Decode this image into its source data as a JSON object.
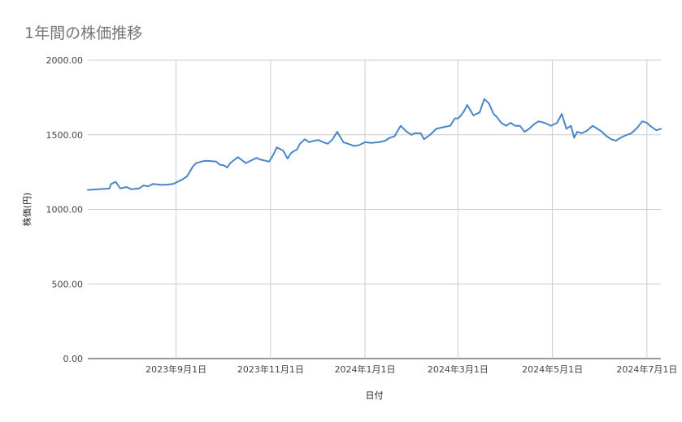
{
  "chart_data": {
    "type": "line",
    "title": "1年間の株価推移",
    "xlabel": "日付",
    "ylabel": "株価(円)",
    "ylim": [
      0,
      2000
    ],
    "yticks": [
      0,
      500,
      1000,
      1500,
      2000
    ],
    "ytick_labels": [
      "0.00",
      "500.00",
      "1000.00",
      "1500.00",
      "2000.00"
    ],
    "xlim": [
      "2023-07-06",
      "2024-07-10"
    ],
    "xticks": [
      "2023-09-01",
      "2023-11-01",
      "2024-01-01",
      "2024-03-01",
      "2024-05-01",
      "2024-07-01"
    ],
    "xtick_labels": [
      "2023年9月1日",
      "2023年11月1日",
      "2024年1月1日",
      "2024年3月1日",
      "2024年5月1日",
      "2024年7月1日"
    ],
    "grid": true,
    "line_color": "#4a86c8",
    "series": [
      {
        "x": [
          "2023-07-06",
          "2023-07-20",
          "2023-07-21",
          "2023-07-24",
          "2023-07-27",
          "2023-07-31",
          "2023-08-03",
          "2023-08-08",
          "2023-08-11",
          "2023-08-14",
          "2023-08-17",
          "2023-08-22",
          "2023-08-25",
          "2023-08-30",
          "2023-09-01",
          "2023-09-05",
          "2023-09-08",
          "2023-09-12",
          "2023-09-14",
          "2023-09-19",
          "2023-09-22",
          "2023-09-27",
          "2023-09-29",
          "2023-10-02",
          "2023-10-04",
          "2023-10-06",
          "2023-10-09",
          "2023-10-11",
          "2023-10-16",
          "2023-10-20",
          "2023-10-23",
          "2023-10-25",
          "2023-10-27",
          "2023-10-31",
          "2023-11-03",
          "2023-11-05",
          "2023-11-07",
          "2023-11-09",
          "2023-11-12",
          "2023-11-14",
          "2023-11-16",
          "2023-11-18",
          "2023-11-20",
          "2023-11-23",
          "2023-11-26",
          "2023-11-29",
          "2023-12-02",
          "2023-12-05",
          "2023-12-08",
          "2023-12-11",
          "2023-12-14",
          "2023-12-18",
          "2023-12-21",
          "2023-12-25",
          "2023-12-28",
          "2024-01-01",
          "2024-01-05",
          "2024-01-10",
          "2024-01-14",
          "2024-01-17",
          "2024-01-20",
          "2024-01-24",
          "2024-01-28",
          "2024-01-31",
          "2024-02-02",
          "2024-02-06",
          "2024-02-08",
          "2024-02-12",
          "2024-02-16",
          "2024-02-20",
          "2024-02-25",
          "2024-02-28",
          "2024-03-01",
          "2024-03-03",
          "2024-03-05",
          "2024-03-07",
          "2024-03-11",
          "2024-03-15",
          "2024-03-18",
          "2024-03-21",
          "2024-03-24",
          "2024-03-26",
          "2024-03-29",
          "2024-04-01",
          "2024-04-04",
          "2024-04-07",
          "2024-04-10",
          "2024-04-13",
          "2024-04-16",
          "2024-04-19",
          "2024-04-22",
          "2024-04-26",
          "2024-04-30",
          "2024-05-04",
          "2024-05-07",
          "2024-05-10",
          "2024-05-13",
          "2024-05-15",
          "2024-05-17",
          "2024-05-20",
          "2024-05-23",
          "2024-05-27",
          "2024-05-30",
          "2024-06-02",
          "2024-06-05",
          "2024-06-08",
          "2024-06-11",
          "2024-06-14",
          "2024-06-18",
          "2024-06-21",
          "2024-06-25",
          "2024-06-28",
          "2024-07-01",
          "2024-07-02",
          "2024-07-03",
          "2024-07-05",
          "2024-07-07",
          "2024-07-10"
        ],
        "y": [
          1130,
          1140,
          1170,
          1185,
          1140,
          1150,
          1135,
          1140,
          1160,
          1155,
          1170,
          1165,
          1165,
          1170,
          1180,
          1200,
          1220,
          1290,
          1310,
          1325,
          1325,
          1320,
          1300,
          1295,
          1280,
          1310,
          1335,
          1350,
          1310,
          1330,
          1345,
          1335,
          1330,
          1320,
          1370,
          1415,
          1405,
          1395,
          1340,
          1375,
          1390,
          1400,
          1440,
          1470,
          1450,
          1460,
          1465,
          1450,
          1440,
          1470,
          1520,
          1450,
          1440,
          1425,
          1430,
          1450,
          1445,
          1450,
          1460,
          1480,
          1490,
          1560,
          1520,
          1500,
          1510,
          1510,
          1470,
          1500,
          1540,
          1550,
          1560,
          1610,
          1610,
          1630,
          1660,
          1700,
          1630,
          1650,
          1740,
          1710,
          1640,
          1620,
          1580,
          1560,
          1580,
          1560,
          1560,
          1520,
          1540,
          1570,
          1590,
          1580,
          1560,
          1580,
          1640,
          1540,
          1560,
          1480,
          1520,
          1510,
          1525,
          1560,
          1540,
          1520,
          1490,
          1470,
          1460,
          1480,
          1500,
          1510,
          1550,
          1590,
          1580,
          1570,
          1560,
          1545,
          1530,
          1540
        ]
      }
    ]
  }
}
